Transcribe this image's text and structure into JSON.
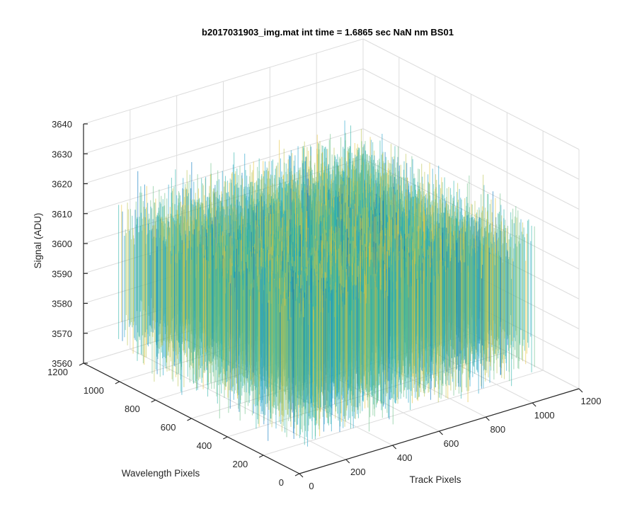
{
  "chart_data": {
    "type": "surface",
    "title": "b2017031903_img.mat int time = 1.6865 sec  NaN nm BS01",
    "xlabel": "Track Pixels",
    "ylabel": "Wavelength Pixels",
    "zlabel": "Signal (ADU)",
    "xlim": [
      0,
      1200
    ],
    "ylim": [
      0,
      1200
    ],
    "zlim": [
      3560,
      3640
    ],
    "xticks": [
      "0",
      "200",
      "400",
      "600",
      "800",
      "1000",
      "1200"
    ],
    "yticks": [
      "0",
      "200",
      "400",
      "600",
      "800",
      "1000",
      "1200"
    ],
    "zticks": [
      "3560",
      "3570",
      "3580",
      "3590",
      "3600",
      "3610",
      "3620",
      "3630",
      "3640"
    ],
    "data_extent": {
      "x": [
        0,
        1024
      ],
      "y": [
        0,
        1024
      ]
    },
    "signal_summary": {
      "mean": 3595,
      "typical_min": 3570,
      "typical_max": 3625
    },
    "grid": true,
    "colormap": "parula",
    "colors": [
      "#0072bd",
      "#1fa0c8",
      "#29b2a8",
      "#6bbf87",
      "#b9c34f",
      "#e8c53a"
    ]
  }
}
